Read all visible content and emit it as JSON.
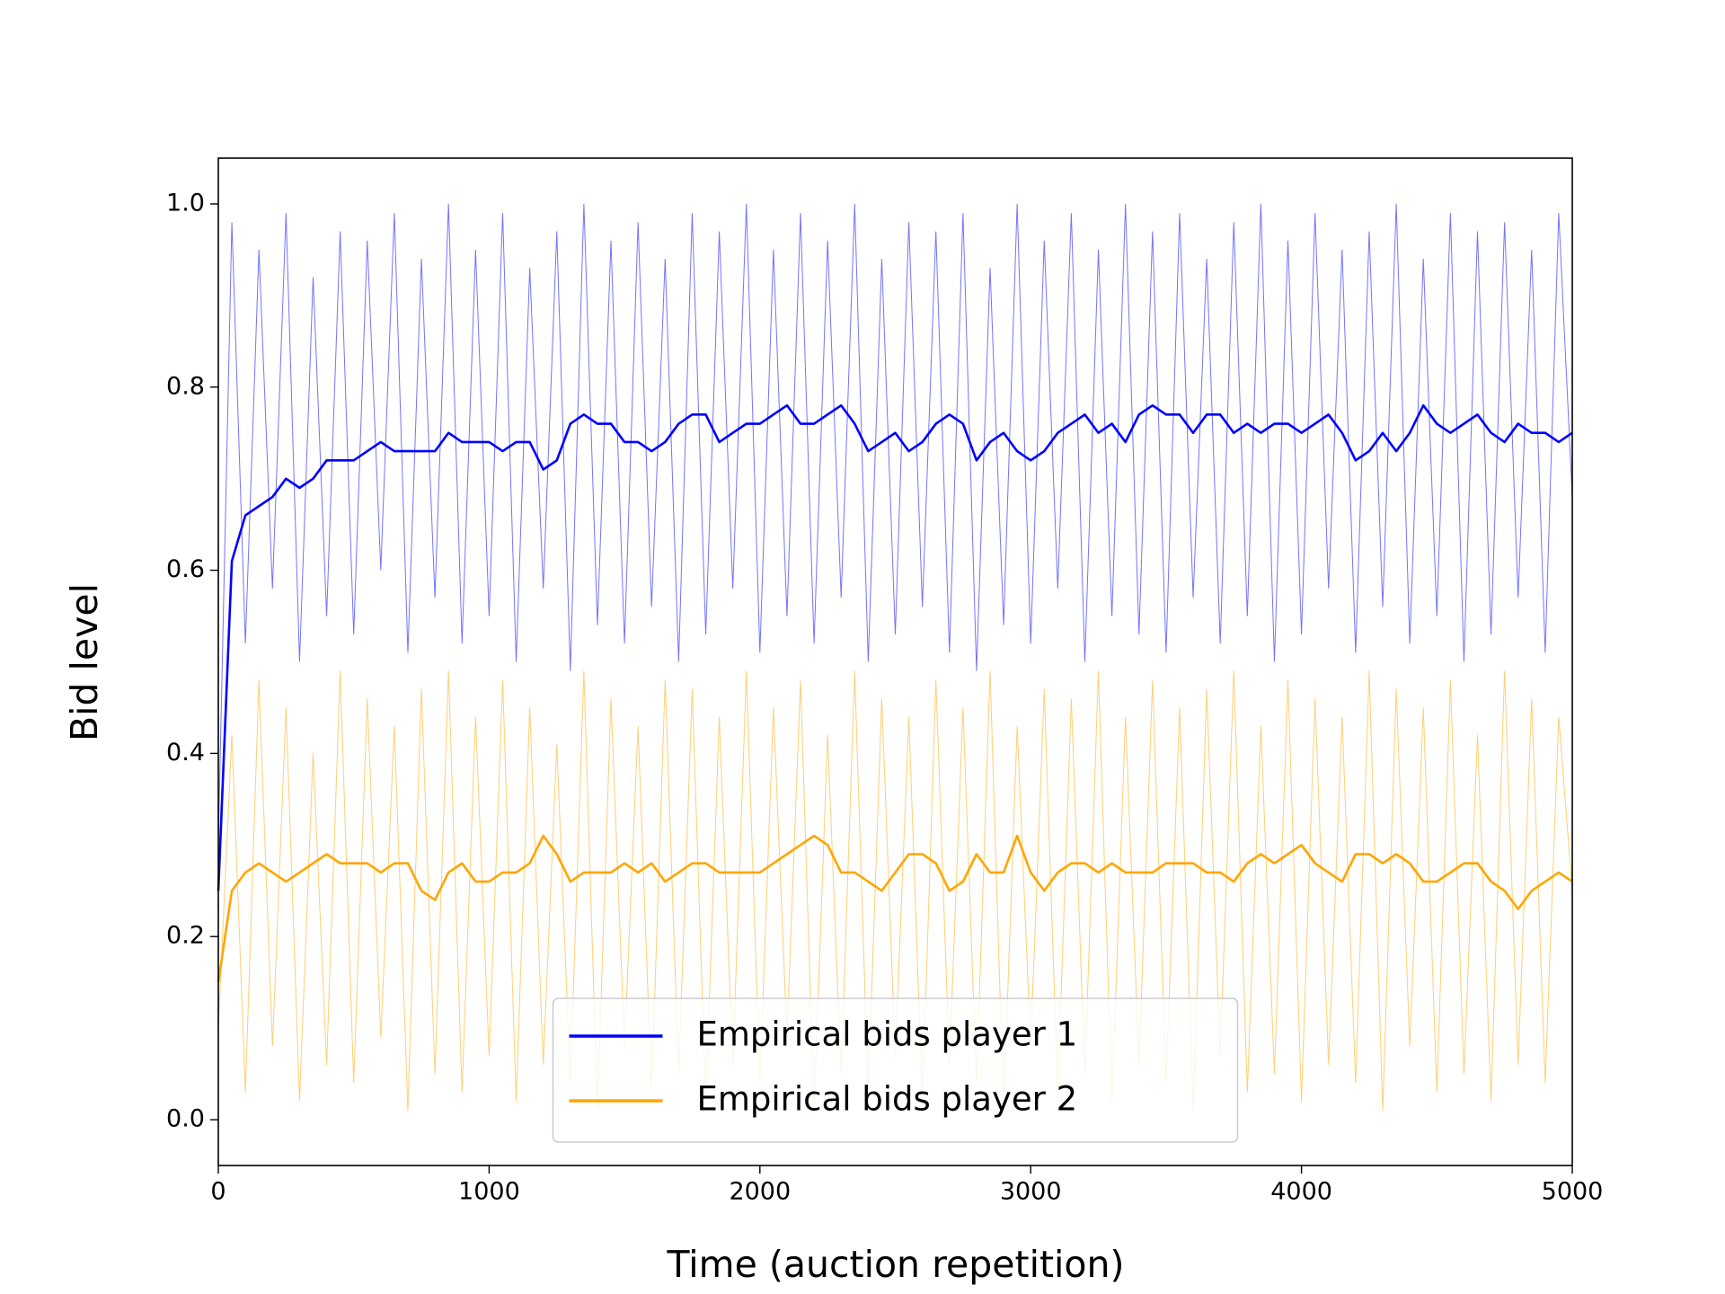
{
  "chart_data": {
    "type": "line",
    "xlabel": "Time (auction repetition)",
    "ylabel": "Bid level",
    "xlim": [
      0,
      5000
    ],
    "xticks": [
      0,
      1000,
      2000,
      3000,
      4000,
      5000
    ],
    "ylim": [
      -0.05,
      1.05
    ],
    "yticks": [
      {
        "value": 0,
        "label": "0.0"
      },
      0.2,
      0.4,
      0.6,
      0.8,
      {
        "value": 1,
        "label": "1.0"
      }
    ],
    "grid": false,
    "legend": "lower center",
    "x": [
      0,
      50,
      100,
      150,
      200,
      250,
      300,
      350,
      400,
      450,
      500,
      550,
      600,
      650,
      700,
      750,
      800,
      850,
      900,
      950,
      1000,
      1050,
      1100,
      1150,
      1200,
      1250,
      1300,
      1350,
      1400,
      1450,
      1500,
      1550,
      1600,
      1650,
      1700,
      1750,
      1800,
      1850,
      1900,
      1950,
      2000,
      2050,
      2100,
      2150,
      2200,
      2250,
      2300,
      2350,
      2400,
      2450,
      2500,
      2550,
      2600,
      2650,
      2700,
      2750,
      2800,
      2850,
      2900,
      2950,
      3000,
      3050,
      3100,
      3150,
      3200,
      3250,
      3300,
      3350,
      3400,
      3450,
      3500,
      3550,
      3600,
      3650,
      3700,
      3750,
      3800,
      3850,
      3900,
      3950,
      4000,
      4050,
      4100,
      4150,
      4200,
      4250,
      4300,
      4350,
      4400,
      4450,
      4500,
      4550,
      4600,
      4650,
      4700,
      4750,
      4800,
      4850,
      4900,
      4950,
      5000
    ],
    "raw_series": [
      {
        "color": "#0000ff",
        "values": [
          0.3,
          0.98,
          0.52,
          0.95,
          0.58,
          0.99,
          0.5,
          0.92,
          0.55,
          0.97,
          0.53,
          0.96,
          0.6,
          0.99,
          0.51,
          0.94,
          0.57,
          1.0,
          0.52,
          0.95,
          0.55,
          0.99,
          0.5,
          0.93,
          0.58,
          0.97,
          0.49,
          1.0,
          0.54,
          0.96,
          0.52,
          0.98,
          0.56,
          0.94,
          0.5,
          0.99,
          0.53,
          0.97,
          0.58,
          1.0,
          0.51,
          0.95,
          0.55,
          0.99,
          0.52,
          0.96,
          0.57,
          1.0,
          0.5,
          0.94,
          0.53,
          0.98,
          0.56,
          0.97,
          0.51,
          0.99,
          0.49,
          0.93,
          0.54,
          1.0,
          0.52,
          0.96,
          0.58,
          0.99,
          0.5,
          0.95,
          0.55,
          1.0,
          0.53,
          0.97,
          0.51,
          0.99,
          0.57,
          0.94,
          0.52,
          0.98,
          0.55,
          1.0,
          0.5,
          0.96,
          0.53,
          0.99,
          0.58,
          0.95,
          0.51,
          0.97,
          0.56,
          1.0,
          0.52,
          0.94,
          0.55,
          0.99,
          0.5,
          0.97,
          0.53,
          0.98,
          0.57,
          0.95,
          0.51,
          0.99,
          0.68
        ]
      },
      {
        "color": "#ffa500",
        "values": [
          0.1,
          0.42,
          0.03,
          0.48,
          0.08,
          0.45,
          0.02,
          0.4,
          0.06,
          0.49,
          0.04,
          0.46,
          0.09,
          0.43,
          0.01,
          0.47,
          0.05,
          0.49,
          0.03,
          0.44,
          0.07,
          0.48,
          0.02,
          0.45,
          0.06,
          0.41,
          0.04,
          0.49,
          0.01,
          0.46,
          0.08,
          0.43,
          0.03,
          0.48,
          0.05,
          0.47,
          0.02,
          0.44,
          0.06,
          0.49,
          0.04,
          0.45,
          0.09,
          0.48,
          0.01,
          0.42,
          0.05,
          0.49,
          0.03,
          0.46,
          0.07,
          0.44,
          0.02,
          0.48,
          0.06,
          0.45,
          0.04,
          0.49,
          0.01,
          0.43,
          0.08,
          0.47,
          0.03,
          0.46,
          0.05,
          0.49,
          0.02,
          0.44,
          0.06,
          0.48,
          0.04,
          0.45,
          0.01,
          0.47,
          0.07,
          0.49,
          0.03,
          0.43,
          0.05,
          0.48,
          0.02,
          0.46,
          0.06,
          0.44,
          0.04,
          0.49,
          0.01,
          0.47,
          0.08,
          0.45,
          0.03,
          0.48,
          0.05,
          0.42,
          0.02,
          0.49,
          0.06,
          0.46,
          0.04,
          0.44,
          0.25
        ]
      }
    ],
    "series": [
      {
        "name": "Empirical bids player 1",
        "color": "#0000ff",
        "values": [
          0.25,
          0.61,
          0.66,
          0.67,
          0.68,
          0.7,
          0.69,
          0.7,
          0.72,
          0.72,
          0.72,
          0.73,
          0.74,
          0.73,
          0.73,
          0.73,
          0.73,
          0.75,
          0.74,
          0.74,
          0.74,
          0.73,
          0.74,
          0.74,
          0.71,
          0.72,
          0.76,
          0.77,
          0.76,
          0.76,
          0.74,
          0.74,
          0.73,
          0.74,
          0.76,
          0.77,
          0.77,
          0.74,
          0.75,
          0.76,
          0.76,
          0.77,
          0.78,
          0.76,
          0.76,
          0.77,
          0.78,
          0.76,
          0.73,
          0.74,
          0.75,
          0.73,
          0.74,
          0.76,
          0.77,
          0.76,
          0.72,
          0.74,
          0.75,
          0.73,
          0.72,
          0.73,
          0.75,
          0.76,
          0.77,
          0.75,
          0.76,
          0.74,
          0.77,
          0.78,
          0.77,
          0.77,
          0.75,
          0.77,
          0.77,
          0.75,
          0.76,
          0.75,
          0.76,
          0.76,
          0.75,
          0.76,
          0.77,
          0.75,
          0.72,
          0.73,
          0.75,
          0.73,
          0.75,
          0.78,
          0.76,
          0.75,
          0.76,
          0.77,
          0.75,
          0.74,
          0.76,
          0.75,
          0.75,
          0.74,
          0.75
        ]
      },
      {
        "name": "Empirical bids player 2",
        "color": "#ffa500",
        "values": [
          0.15,
          0.25,
          0.27,
          0.28,
          0.27,
          0.26,
          0.27,
          0.28,
          0.29,
          0.28,
          0.28,
          0.28,
          0.27,
          0.28,
          0.28,
          0.25,
          0.24,
          0.27,
          0.28,
          0.26,
          0.26,
          0.27,
          0.27,
          0.28,
          0.31,
          0.29,
          0.26,
          0.27,
          0.27,
          0.27,
          0.28,
          0.27,
          0.28,
          0.26,
          0.27,
          0.28,
          0.28,
          0.27,
          0.27,
          0.27,
          0.27,
          0.28,
          0.29,
          0.3,
          0.31,
          0.3,
          0.27,
          0.27,
          0.26,
          0.25,
          0.27,
          0.29,
          0.29,
          0.28,
          0.25,
          0.26,
          0.29,
          0.27,
          0.27,
          0.31,
          0.27,
          0.25,
          0.27,
          0.28,
          0.28,
          0.27,
          0.28,
          0.27,
          0.27,
          0.27,
          0.28,
          0.28,
          0.28,
          0.27,
          0.27,
          0.26,
          0.28,
          0.29,
          0.28,
          0.29,
          0.3,
          0.28,
          0.27,
          0.26,
          0.29,
          0.29,
          0.28,
          0.29,
          0.28,
          0.26,
          0.26,
          0.27,
          0.28,
          0.28,
          0.26,
          0.25,
          0.23,
          0.25,
          0.26,
          0.27,
          0.26
        ]
      }
    ]
  }
}
